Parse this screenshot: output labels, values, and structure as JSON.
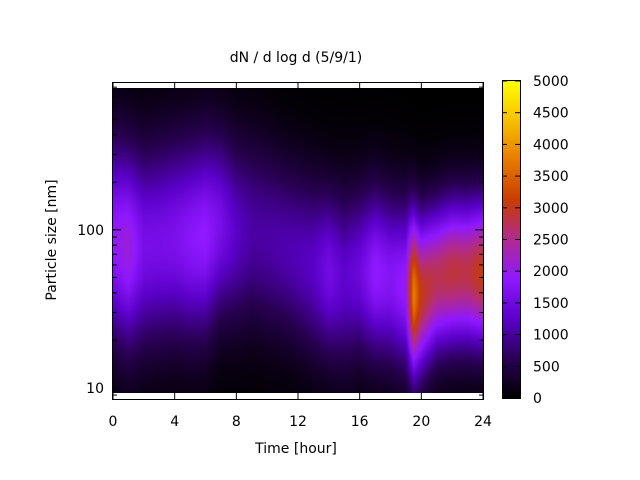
{
  "chart_data": {
    "type": "heatmap",
    "title": "dN / d log d (5/9/1)",
    "xlabel": "Time [hour]",
    "ylabel": "Particle size [nm]",
    "x_ticks": [
      0,
      4,
      8,
      12,
      16,
      20,
      24
    ],
    "x_tick_labels": [
      "0",
      "4",
      "8",
      "12",
      "16",
      "20",
      "24"
    ],
    "xlim": [
      0,
      24
    ],
    "y_scale": "log",
    "y_ticks": [
      10,
      100
    ],
    "y_tick_labels": [
      "10",
      "100"
    ],
    "ylim": [
      8.5,
      850
    ],
    "colorbar": {
      "range": [
        0,
        5000
      ],
      "ticks": [
        0,
        500,
        1000,
        1500,
        2000,
        2500,
        3000,
        3500,
        4000,
        4500,
        5000
      ],
      "tick_labels": [
        "0",
        "500",
        "1000",
        "1500",
        "2000",
        "2500",
        "3000",
        "3500",
        "4000",
        "4500",
        "5000"
      ],
      "colormap": [
        "#000000",
        "#2a0055",
        "#5a00c8",
        "#8f18ff",
        "#b02a90",
        "#c83c00",
        "#e67a00",
        "#f7c000",
        "#ffff00"
      ]
    },
    "time_hours": [
      0,
      1,
      2,
      3,
      4,
      5,
      6,
      7,
      8,
      9,
      10,
      11,
      12,
      13,
      14,
      15,
      16,
      17,
      18,
      19,
      19.5,
      20,
      21,
      22,
      23,
      24
    ],
    "peak_concentration": [
      1900,
      2100,
      1600,
      1600,
      1650,
      1800,
      1900,
      1600,
      1250,
      1050,
      1050,
      1100,
      1150,
      1250,
      1550,
      1300,
      1450,
      1900,
      1750,
      1950,
      3800,
      3000,
      2750,
      2850,
      2800,
      3100
    ],
    "peak_size_nm": [
      90,
      80,
      80,
      85,
      90,
      90,
      95,
      110,
      100,
      100,
      90,
      80,
      70,
      60,
      55,
      50,
      55,
      55,
      50,
      45,
      40,
      40,
      50,
      55,
      55,
      55
    ],
    "distribution_width_log10": [
      0.45,
      0.45,
      0.45,
      0.45,
      0.45,
      0.45,
      0.45,
      0.42,
      0.42,
      0.42,
      0.42,
      0.4,
      0.4,
      0.4,
      0.38,
      0.4,
      0.38,
      0.38,
      0.38,
      0.38,
      0.36,
      0.35,
      0.33,
      0.33,
      0.33,
      0.33
    ]
  }
}
